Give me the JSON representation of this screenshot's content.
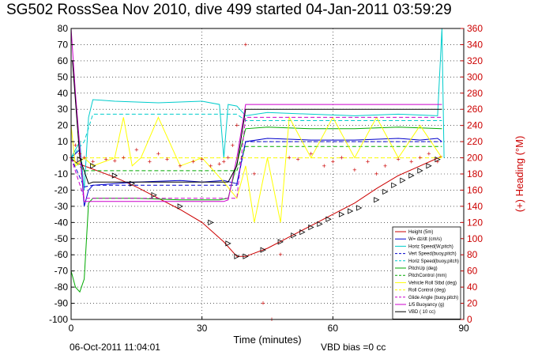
{
  "title": "SG502 RossSea Nov 2010, dive 499 started 04-Jan-2011 03:59:29",
  "footer": {
    "date": "06-Oct-2011 11:04:01",
    "vbd_bias": "VBD bias =0 cc"
  },
  "chart_data": {
    "type": "line",
    "xlabel": "Time (minutes)",
    "ylabel_left": "",
    "ylabel_right": "(+) Heading (°M)",
    "xlim": [
      0,
      90
    ],
    "ylim_left": [
      -100,
      80
    ],
    "ylim_right": [
      0,
      360
    ],
    "x_ticks": [
      0,
      30,
      60,
      90
    ],
    "y_left_ticks": [
      -100,
      -90,
      -80,
      -70,
      -60,
      -50,
      -40,
      -30,
      -20,
      -10,
      0,
      10,
      20,
      30,
      40,
      50,
      60,
      70,
      80
    ],
    "y_right_ticks": [
      0,
      20,
      40,
      60,
      80,
      100,
      120,
      140,
      160,
      180,
      200,
      220,
      240,
      260,
      280,
      300,
      320,
      340,
      360
    ],
    "grid": true,
    "legend_position": "bottom-right",
    "series": [
      {
        "name": "Height (5m)",
        "color": "#cc0000",
        "style": "solid",
        "x": [
          0,
          2,
          5,
          10,
          15,
          20,
          25,
          30,
          35,
          38,
          40,
          45,
          50,
          55,
          60,
          65,
          70,
          75,
          80,
          85
        ],
        "y": [
          -1,
          -4,
          -7,
          -12,
          -18,
          -25,
          -32,
          -40,
          -52,
          -61,
          -61,
          -56,
          -49,
          -42,
          -35,
          -28,
          -19,
          -11,
          -5,
          1
        ]
      },
      {
        "name": "W= dz/dt (cm/s)",
        "color": "#0000cc",
        "style": "solid",
        "x": [
          0,
          2,
          3,
          4,
          5,
          15,
          25,
          30,
          35,
          38,
          40,
          45,
          55,
          65,
          75,
          80,
          84,
          85
        ],
        "y": [
          0,
          5,
          -30,
          -20,
          -17,
          -15,
          -14,
          -15,
          -14,
          -16,
          10,
          12,
          11,
          11,
          12,
          11,
          12,
          10
        ]
      },
      {
        "name": "Horiz Speed(W,pitch)",
        "color": "#00cccc",
        "style": "solid",
        "x": [
          0,
          2,
          3,
          4,
          5,
          10,
          20,
          30,
          34,
          35,
          36,
          38,
          40,
          45,
          55,
          65,
          75,
          84,
          85,
          85.5
        ],
        "y": [
          0,
          10,
          -20,
          25,
          36,
          35,
          34,
          35,
          33,
          0,
          33,
          32,
          26,
          28,
          27,
          26,
          27,
          26,
          80,
          0
        ]
      },
      {
        "name": "Vert Speed(buoy,pitch)",
        "color": "#0000cc",
        "style": "dashed",
        "x": [
          0,
          3,
          5,
          35,
          38,
          40,
          85
        ],
        "y": [
          0,
          -18,
          -17,
          -17,
          -17,
          10,
          10
        ]
      },
      {
        "name": "Horiz Speed(buoy,pitch)",
        "color": "#00cccc",
        "style": "dashed",
        "x": [
          0,
          3,
          5,
          35,
          38,
          40,
          85
        ],
        "y": [
          0,
          10,
          27,
          27,
          27,
          23,
          23
        ]
      },
      {
        "name": "PitchUp (deg)",
        "color": "#00aa00",
        "style": "solid",
        "x": [
          0,
          1,
          2,
          3,
          4,
          5,
          15,
          25,
          34,
          36,
          40,
          45,
          55,
          65,
          75,
          85
        ],
        "y": [
          -70,
          -80,
          -83,
          -75,
          -28,
          -25,
          -25,
          -26,
          -26,
          -25,
          18,
          19,
          18,
          18,
          19,
          18
        ]
      },
      {
        "name": "PitchControl (mm)",
        "color": "#00aa00",
        "style": "dashed",
        "x": [
          0,
          3,
          5,
          35,
          38,
          40,
          85
        ],
        "y": [
          0,
          -8,
          -8,
          -8,
          -8,
          7,
          7
        ]
      },
      {
        "name": "Vehicle Roll Stbd (deg)",
        "color": "#ffff00",
        "style": "solid",
        "x": [
          0,
          1,
          3,
          5,
          10,
          12,
          14,
          16,
          20,
          25,
          30,
          35,
          38,
          40,
          42,
          45,
          48,
          50,
          55,
          60,
          65,
          70,
          75,
          80,
          85
        ],
        "y": [
          20,
          -5,
          0,
          -5,
          0,
          25,
          -5,
          0,
          25,
          -5,
          0,
          -15,
          -25,
          -5,
          -40,
          0,
          -40,
          25,
          0,
          25,
          0,
          25,
          0,
          20,
          0
        ]
      },
      {
        "name": "Roll Control (deg)",
        "color": "#ffff00",
        "style": "dashed",
        "x": [
          0,
          5,
          35,
          40,
          85
        ],
        "y": [
          0,
          0,
          0,
          0,
          0
        ]
      },
      {
        "name": "Glide Angle (buoy,pitch)",
        "color": "#cc00cc",
        "style": "dashed",
        "x": [
          0,
          3,
          5,
          35,
          38,
          40,
          85
        ],
        "y": [
          0,
          -25,
          -25,
          -25,
          -25,
          25,
          25
        ]
      },
      {
        "name": "1/5 Buoyancy (g)",
        "color": "#cc00cc",
        "style": "solid",
        "x": [
          0,
          1,
          3,
          5,
          35,
          36,
          38,
          40,
          85
        ],
        "y": [
          80,
          40,
          -27,
          -27,
          -27,
          -26,
          0,
          33,
          33
        ]
      },
      {
        "name": "VBD ( 10 cc)",
        "color": "#000000",
        "style": "solid",
        "x": [
          0,
          0.3,
          2,
          4,
          5,
          35,
          36,
          38,
          40,
          85
        ],
        "y": [
          60,
          60,
          0,
          -16,
          -15,
          -15,
          -15,
          -5,
          30,
          30
        ]
      }
    ],
    "heading_right_axis": {
      "name": "(+) Heading (°M)",
      "color": "#cc0000",
      "x": [
        0,
        1,
        2,
        3,
        5,
        8,
        10,
        12,
        15,
        18,
        20,
        22,
        25,
        28,
        30,
        32,
        34,
        35,
        36,
        37,
        38,
        40,
        42,
        44,
        46,
        48,
        50,
        52,
        55,
        58,
        60,
        62,
        65,
        68,
        70,
        72,
        75,
        78,
        80,
        82,
        84
      ],
      "y": [
        200,
        215,
        205,
        200,
        195,
        198,
        196,
        200,
        210,
        195,
        205,
        198,
        190,
        195,
        198,
        190,
        192,
        195,
        200,
        215,
        240,
        340,
        180,
        20,
        0,
        80,
        200,
        198,
        205,
        190,
        195,
        200,
        185,
        195,
        180,
        190,
        198,
        195,
        200,
        205,
        195
      ]
    },
    "triangle_markers": {
      "x": [
        2,
        5,
        10,
        14,
        19,
        25,
        32,
        36,
        38,
        40,
        44,
        48,
        51,
        53,
        55,
        57,
        59,
        62,
        64,
        66,
        70,
        72,
        74,
        76,
        78,
        80,
        82,
        84
      ],
      "y": [
        -1,
        -5,
        -11,
        -16,
        -23,
        -30,
        -40,
        -53,
        -61,
        -61,
        -57,
        -52,
        -48,
        -46,
        -43,
        -41,
        -38,
        -35,
        -33,
        -31,
        -26,
        -21,
        -17,
        -14,
        -11,
        -8,
        -5,
        -1
      ]
    }
  }
}
